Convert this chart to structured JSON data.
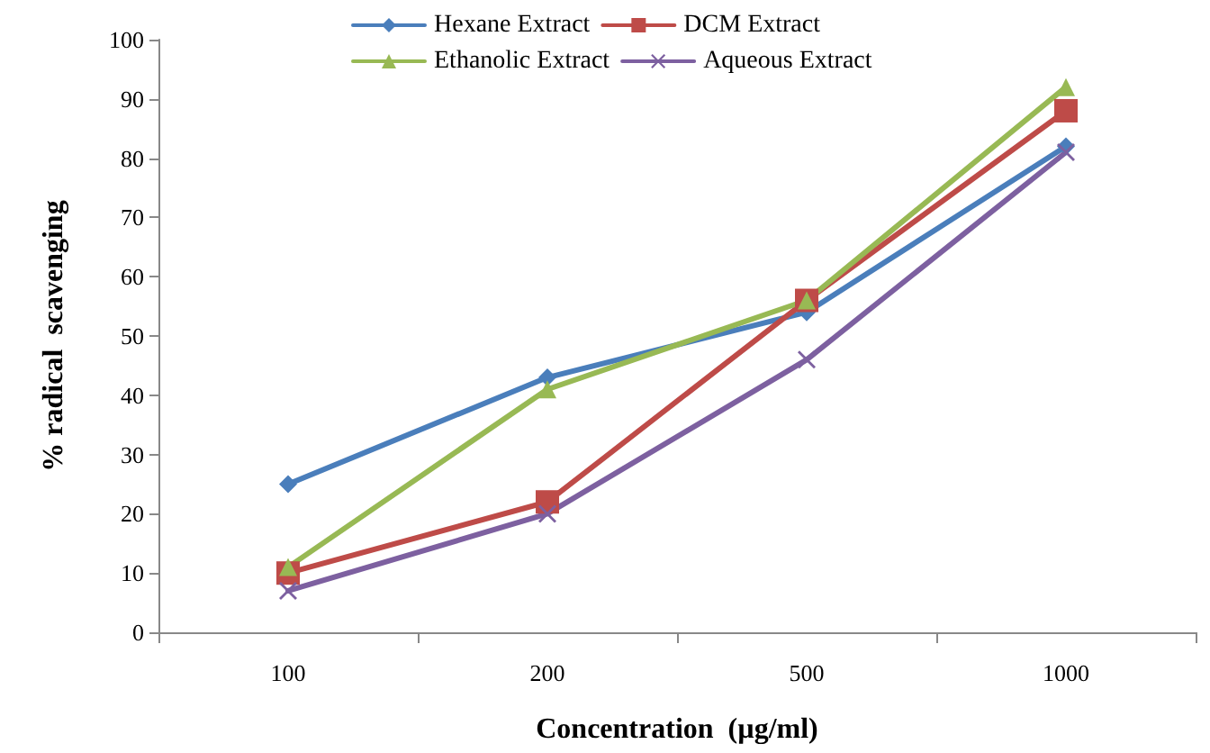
{
  "chart_data": {
    "type": "line",
    "xlabel": "Concentration  (µg/ml)",
    "ylabel": "% radical  scavenging",
    "categories": [
      "100",
      "200",
      "500",
      "1000"
    ],
    "series": [
      {
        "name": "Hexane Extract",
        "color": "#4a7ebb",
        "marker": "diamond",
        "values": [
          25,
          43,
          54,
          82
        ]
      },
      {
        "name": "DCM Extract",
        "color": "#be4b48",
        "marker": "square",
        "values": [
          10,
          22,
          56,
          88
        ]
      },
      {
        "name": "Ethanolic Extract",
        "color": "#98b954",
        "marker": "triangle",
        "values": [
          11,
          41,
          56,
          92
        ]
      },
      {
        "name": "Aqueous Extract",
        "color": "#7d60a0",
        "marker": "cross",
        "values": [
          7,
          20,
          46,
          81
        ]
      }
    ],
    "ylim": [
      0,
      100
    ],
    "yticks": [
      0,
      10,
      20,
      30,
      40,
      50,
      60,
      70,
      80,
      90,
      100
    ],
    "grid": false,
    "legend": "top",
    "line_style": "solid"
  }
}
